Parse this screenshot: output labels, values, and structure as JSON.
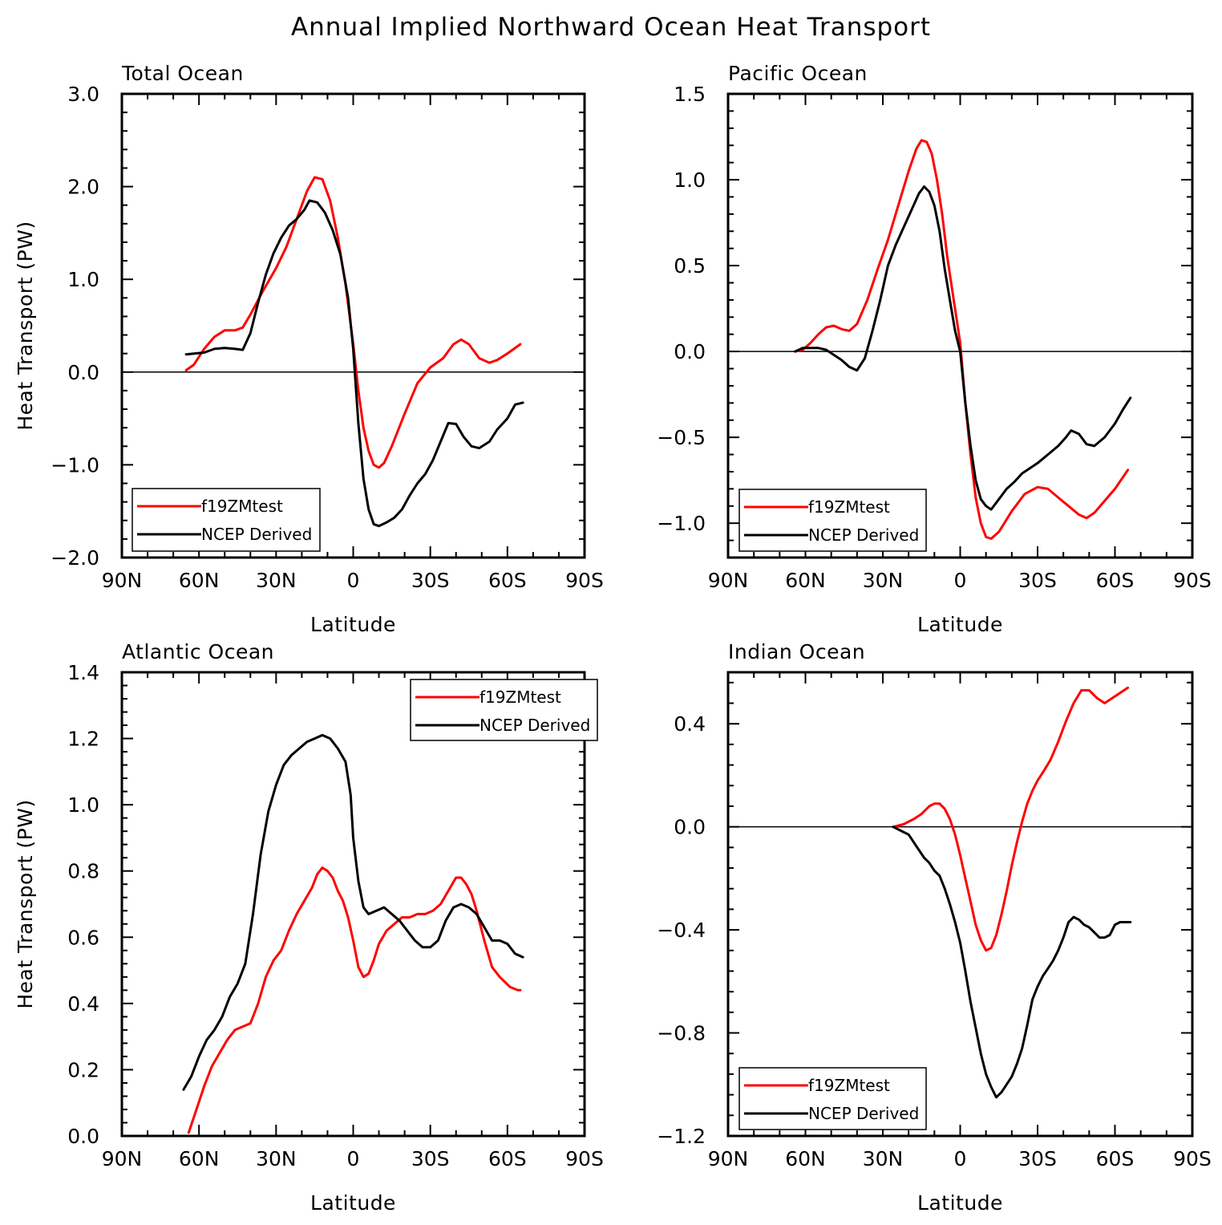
{
  "figure": {
    "title": "Annual Implied Northward Ocean Heat Transport"
  },
  "chart_data": [
    {
      "type": "line",
      "title": "Total Ocean",
      "xlabel": "Latitude",
      "ylabel": "Heat Transport (PW)",
      "xlim": [
        90,
        -90
      ],
      "x_tick_values": [
        90,
        60,
        30,
        0,
        -30,
        -60,
        -90
      ],
      "x_tick_labels": [
        "90N",
        "60N",
        "30N",
        "0",
        "30S",
        "60S",
        "90S"
      ],
      "ylim": [
        -2.0,
        3.0
      ],
      "y_tick_values": [
        -2.0,
        -1.0,
        0.0,
        1.0,
        2.0,
        3.0
      ],
      "y_tick_labels": [
        "−2.0",
        "−1.0",
        "0.0",
        "1.0",
        "2.0",
        "3.0"
      ],
      "zero_line": true,
      "legend_position": "lower-left",
      "series": [
        {
          "name": "f19ZMtest",
          "color": "#ff0000",
          "x": [
            65,
            62,
            58,
            54,
            50,
            46,
            43,
            40,
            35,
            30,
            26,
            22,
            18,
            15,
            12,
            9,
            6,
            3,
            0,
            -2,
            -4,
            -6,
            -8,
            -10,
            -12,
            -15,
            -20,
            -25,
            -30,
            -35,
            -39,
            -42,
            -45,
            -49,
            -53,
            -56,
            -60,
            -65
          ],
          "y": [
            0.02,
            0.08,
            0.25,
            0.38,
            0.45,
            0.45,
            0.48,
            0.62,
            0.88,
            1.12,
            1.35,
            1.65,
            1.95,
            2.1,
            2.08,
            1.85,
            1.45,
            0.95,
            0.3,
            -0.2,
            -0.6,
            -0.85,
            -1.0,
            -1.03,
            -0.98,
            -0.8,
            -0.45,
            -0.12,
            0.05,
            0.15,
            0.3,
            0.35,
            0.3,
            0.15,
            0.1,
            0.13,
            0.2,
            0.3
          ]
        },
        {
          "name": "NCEP Derived",
          "color": "#000000",
          "x": [
            65,
            62,
            58,
            54,
            50,
            46,
            43,
            40,
            37,
            34,
            31,
            28,
            25,
            22,
            19,
            17,
            14,
            11,
            8,
            5,
            2,
            0,
            -2,
            -4,
            -6,
            -8,
            -10,
            -13,
            -16,
            -19,
            -22,
            -25,
            -28,
            -31,
            -34,
            -37,
            -40,
            -43,
            -46,
            -49,
            -53,
            -56,
            -60,
            -63,
            -66
          ],
          "y": [
            0.19,
            0.2,
            0.21,
            0.25,
            0.26,
            0.25,
            0.24,
            0.42,
            0.75,
            1.05,
            1.28,
            1.45,
            1.58,
            1.65,
            1.75,
            1.85,
            1.83,
            1.72,
            1.53,
            1.27,
            0.8,
            0.25,
            -0.55,
            -1.15,
            -1.48,
            -1.64,
            -1.66,
            -1.62,
            -1.57,
            -1.48,
            -1.33,
            -1.2,
            -1.1,
            -0.95,
            -0.75,
            -0.55,
            -0.56,
            -0.7,
            -0.8,
            -0.82,
            -0.75,
            -0.62,
            -0.5,
            -0.35,
            -0.33
          ]
        }
      ]
    },
    {
      "type": "line",
      "title": "Pacific Ocean",
      "xlabel": "Latitude",
      "ylabel": "",
      "xlim": [
        90,
        -90
      ],
      "x_tick_values": [
        90,
        60,
        30,
        0,
        -30,
        -60,
        -90
      ],
      "x_tick_labels": [
        "90N",
        "60N",
        "30N",
        "0",
        "30S",
        "60S",
        "90S"
      ],
      "ylim": [
        -1.2,
        1.5
      ],
      "y_tick_values": [
        -1.0,
        -0.5,
        0.0,
        0.5,
        1.0,
        1.5
      ],
      "y_tick_labels": [
        "−1.0",
        "−0.5",
        "0.0",
        "0.5",
        "1.0",
        "1.5"
      ],
      "zero_line": true,
      "legend_position": "lower-left",
      "series": [
        {
          "name": "f19ZMtest",
          "color": "#ff0000",
          "x": [
            64,
            61,
            58,
            55,
            52,
            49,
            46,
            43,
            40,
            36,
            32,
            28,
            24,
            20,
            17,
            15,
            13,
            11,
            9,
            7,
            5,
            3,
            1,
            0,
            -2,
            -4,
            -6,
            -8,
            -10,
            -12,
            -15,
            -20,
            -25,
            -30,
            -34,
            -38,
            -42,
            -46,
            -49,
            -52,
            -56,
            -60,
            -65
          ],
          "y": [
            0.0,
            0.01,
            0.05,
            0.1,
            0.14,
            0.15,
            0.13,
            0.12,
            0.16,
            0.3,
            0.48,
            0.65,
            0.85,
            1.05,
            1.18,
            1.23,
            1.22,
            1.15,
            1.0,
            0.8,
            0.55,
            0.35,
            0.15,
            0.05,
            -0.3,
            -0.6,
            -0.85,
            -1.0,
            -1.08,
            -1.09,
            -1.05,
            -0.93,
            -0.83,
            -0.79,
            -0.8,
            -0.85,
            -0.9,
            -0.95,
            -0.97,
            -0.94,
            -0.87,
            -0.8,
            -0.69
          ]
        },
        {
          "name": "NCEP Derived",
          "color": "#000000",
          "x": [
            64,
            61,
            58,
            55,
            52,
            49,
            46,
            43,
            40,
            37,
            34,
            31,
            28,
            25,
            22,
            19,
            16,
            14,
            12,
            10,
            8,
            6,
            4,
            2,
            0,
            -2,
            -4,
            -6,
            -8,
            -10,
            -12,
            -15,
            -18,
            -21,
            -24,
            -27,
            -30,
            -34,
            -38,
            -41,
            -43,
            -46,
            -49,
            -52,
            -56,
            -60,
            -63,
            -66
          ],
          "y": [
            0.0,
            0.02,
            0.02,
            0.02,
            0.01,
            -0.02,
            -0.05,
            -0.09,
            -0.11,
            -0.04,
            0.12,
            0.3,
            0.5,
            0.62,
            0.72,
            0.82,
            0.92,
            0.96,
            0.93,
            0.85,
            0.7,
            0.48,
            0.3,
            0.12,
            0.0,
            -0.3,
            -0.55,
            -0.75,
            -0.86,
            -0.9,
            -0.92,
            -0.86,
            -0.8,
            -0.76,
            -0.71,
            -0.68,
            -0.65,
            -0.6,
            -0.55,
            -0.5,
            -0.46,
            -0.48,
            -0.54,
            -0.55,
            -0.5,
            -0.42,
            -0.34,
            -0.27
          ]
        }
      ]
    },
    {
      "type": "line",
      "title": "Atlantic Ocean",
      "xlabel": "Latitude",
      "ylabel": "Heat Transport (PW)",
      "xlim": [
        90,
        -90
      ],
      "x_tick_values": [
        90,
        60,
        30,
        0,
        -30,
        -60,
        -90
      ],
      "x_tick_labels": [
        "90N",
        "60N",
        "30N",
        "0",
        "30S",
        "60S",
        "90S"
      ],
      "ylim": [
        0.0,
        1.4
      ],
      "y_tick_values": [
        0.0,
        0.2,
        0.4,
        0.6,
        0.8,
        1.0,
        1.2,
        1.4
      ],
      "y_tick_labels": [
        "0.0",
        "0.2",
        "0.4",
        "0.6",
        "0.8",
        "1.0",
        "1.2",
        "1.4"
      ],
      "zero_line": false,
      "legend_position": "top-right",
      "series": [
        {
          "name": "f19ZMtest",
          "color": "#ff0000",
          "x": [
            64,
            61,
            58,
            55,
            52,
            49,
            46,
            43,
            40,
            37,
            34,
            31,
            28,
            25,
            22,
            19,
            16,
            14,
            12,
            10,
            8,
            6,
            4,
            2,
            0,
            -2,
            -4,
            -6,
            -8,
            -10,
            -13,
            -16,
            -19,
            -22,
            -25,
            -28,
            -31,
            -34,
            -37,
            -40,
            -42,
            -44,
            -46,
            -48,
            -51,
            -54,
            -57,
            -61,
            -64,
            -65
          ],
          "y": [
            0.01,
            0.08,
            0.15,
            0.21,
            0.25,
            0.29,
            0.32,
            0.33,
            0.34,
            0.4,
            0.48,
            0.53,
            0.56,
            0.62,
            0.67,
            0.71,
            0.75,
            0.79,
            0.81,
            0.8,
            0.78,
            0.74,
            0.71,
            0.66,
            0.59,
            0.51,
            0.48,
            0.49,
            0.53,
            0.58,
            0.62,
            0.64,
            0.66,
            0.66,
            0.67,
            0.67,
            0.68,
            0.7,
            0.74,
            0.78,
            0.78,
            0.76,
            0.73,
            0.68,
            0.59,
            0.51,
            0.48,
            0.45,
            0.44,
            0.44
          ]
        },
        {
          "name": "NCEP Derived",
          "color": "#000000",
          "x": [
            66,
            63,
            60,
            57,
            54,
            51,
            48,
            45,
            42,
            39,
            36,
            33,
            30,
            27,
            24,
            21,
            18,
            15,
            12,
            9,
            6,
            3,
            1,
            0,
            -2,
            -4,
            -6,
            -9,
            -12,
            -15,
            -18,
            -21,
            -24,
            -27,
            -30,
            -33,
            -36,
            -39,
            -42,
            -45,
            -48,
            -51,
            -54,
            -57,
            -60,
            -63,
            -66
          ],
          "y": [
            0.14,
            0.18,
            0.24,
            0.29,
            0.32,
            0.36,
            0.42,
            0.46,
            0.52,
            0.67,
            0.85,
            0.98,
            1.06,
            1.12,
            1.15,
            1.17,
            1.19,
            1.2,
            1.21,
            1.2,
            1.17,
            1.13,
            1.03,
            0.9,
            0.77,
            0.69,
            0.67,
            0.68,
            0.69,
            0.67,
            0.65,
            0.62,
            0.59,
            0.57,
            0.57,
            0.59,
            0.65,
            0.69,
            0.7,
            0.69,
            0.67,
            0.63,
            0.59,
            0.59,
            0.58,
            0.55,
            0.54
          ]
        }
      ]
    },
    {
      "type": "line",
      "title": "Indian Ocean",
      "xlabel": "Latitude",
      "ylabel": "",
      "xlim": [
        90,
        -90
      ],
      "x_tick_values": [
        90,
        60,
        30,
        0,
        -30,
        -60,
        -90
      ],
      "x_tick_labels": [
        "90N",
        "60N",
        "30N",
        "0",
        "30S",
        "60S",
        "90S"
      ],
      "ylim": [
        -1.2,
        0.6
      ],
      "y_tick_values": [
        -1.2,
        -0.8,
        -0.4,
        0.0,
        0.4
      ],
      "y_tick_labels": [
        "−1.2",
        "−0.8",
        "−0.4",
        "0.0",
        "0.4"
      ],
      "zero_line": true,
      "legend_position": "lower-left",
      "series": [
        {
          "name": "f19ZMtest",
          "color": "#ff0000",
          "x": [
            26,
            22,
            18,
            15,
            12,
            10,
            8,
            6,
            4,
            2,
            0,
            -2,
            -4,
            -6,
            -8,
            -10,
            -12,
            -14,
            -16,
            -18,
            -20,
            -22,
            -24,
            -26,
            -28,
            -30,
            -32,
            -35,
            -38,
            -41,
            -44,
            -47,
            -50,
            -53,
            -56,
            -59,
            -62,
            -65
          ],
          "y": [
            0.0,
            0.01,
            0.03,
            0.05,
            0.08,
            0.09,
            0.09,
            0.07,
            0.03,
            -0.03,
            -0.11,
            -0.2,
            -0.29,
            -0.38,
            -0.44,
            -0.48,
            -0.47,
            -0.42,
            -0.34,
            -0.25,
            -0.15,
            -0.06,
            0.02,
            0.09,
            0.14,
            0.18,
            0.21,
            0.26,
            0.33,
            0.41,
            0.48,
            0.53,
            0.53,
            0.5,
            0.48,
            0.5,
            0.52,
            0.54
          ]
        },
        {
          "name": "NCEP Derived",
          "color": "#000000",
          "x": [
            26,
            24,
            22,
            20,
            18,
            16,
            14,
            12,
            10,
            8,
            6,
            4,
            2,
            0,
            -2,
            -4,
            -6,
            -8,
            -10,
            -12,
            -14,
            -16,
            -18,
            -20,
            -22,
            -24,
            -26,
            -28,
            -30,
            -32,
            -34,
            -36,
            -38,
            -40,
            -42,
            -44,
            -46,
            -48,
            -50,
            -52,
            -54,
            -56,
            -58,
            -60,
            -62,
            -64,
            -66
          ],
          "y": [
            0.0,
            -0.01,
            -0.02,
            -0.03,
            -0.06,
            -0.09,
            -0.12,
            -0.14,
            -0.17,
            -0.19,
            -0.24,
            -0.3,
            -0.37,
            -0.45,
            -0.56,
            -0.68,
            -0.78,
            -0.88,
            -0.96,
            -1.01,
            -1.05,
            -1.03,
            -1.0,
            -0.97,
            -0.92,
            -0.86,
            -0.77,
            -0.67,
            -0.62,
            -0.58,
            -0.55,
            -0.52,
            -0.48,
            -0.43,
            -0.37,
            -0.35,
            -0.36,
            -0.38,
            -0.39,
            -0.41,
            -0.43,
            -0.43,
            -0.42,
            -0.38,
            -0.37,
            -0.37,
            -0.37
          ]
        }
      ]
    }
  ]
}
